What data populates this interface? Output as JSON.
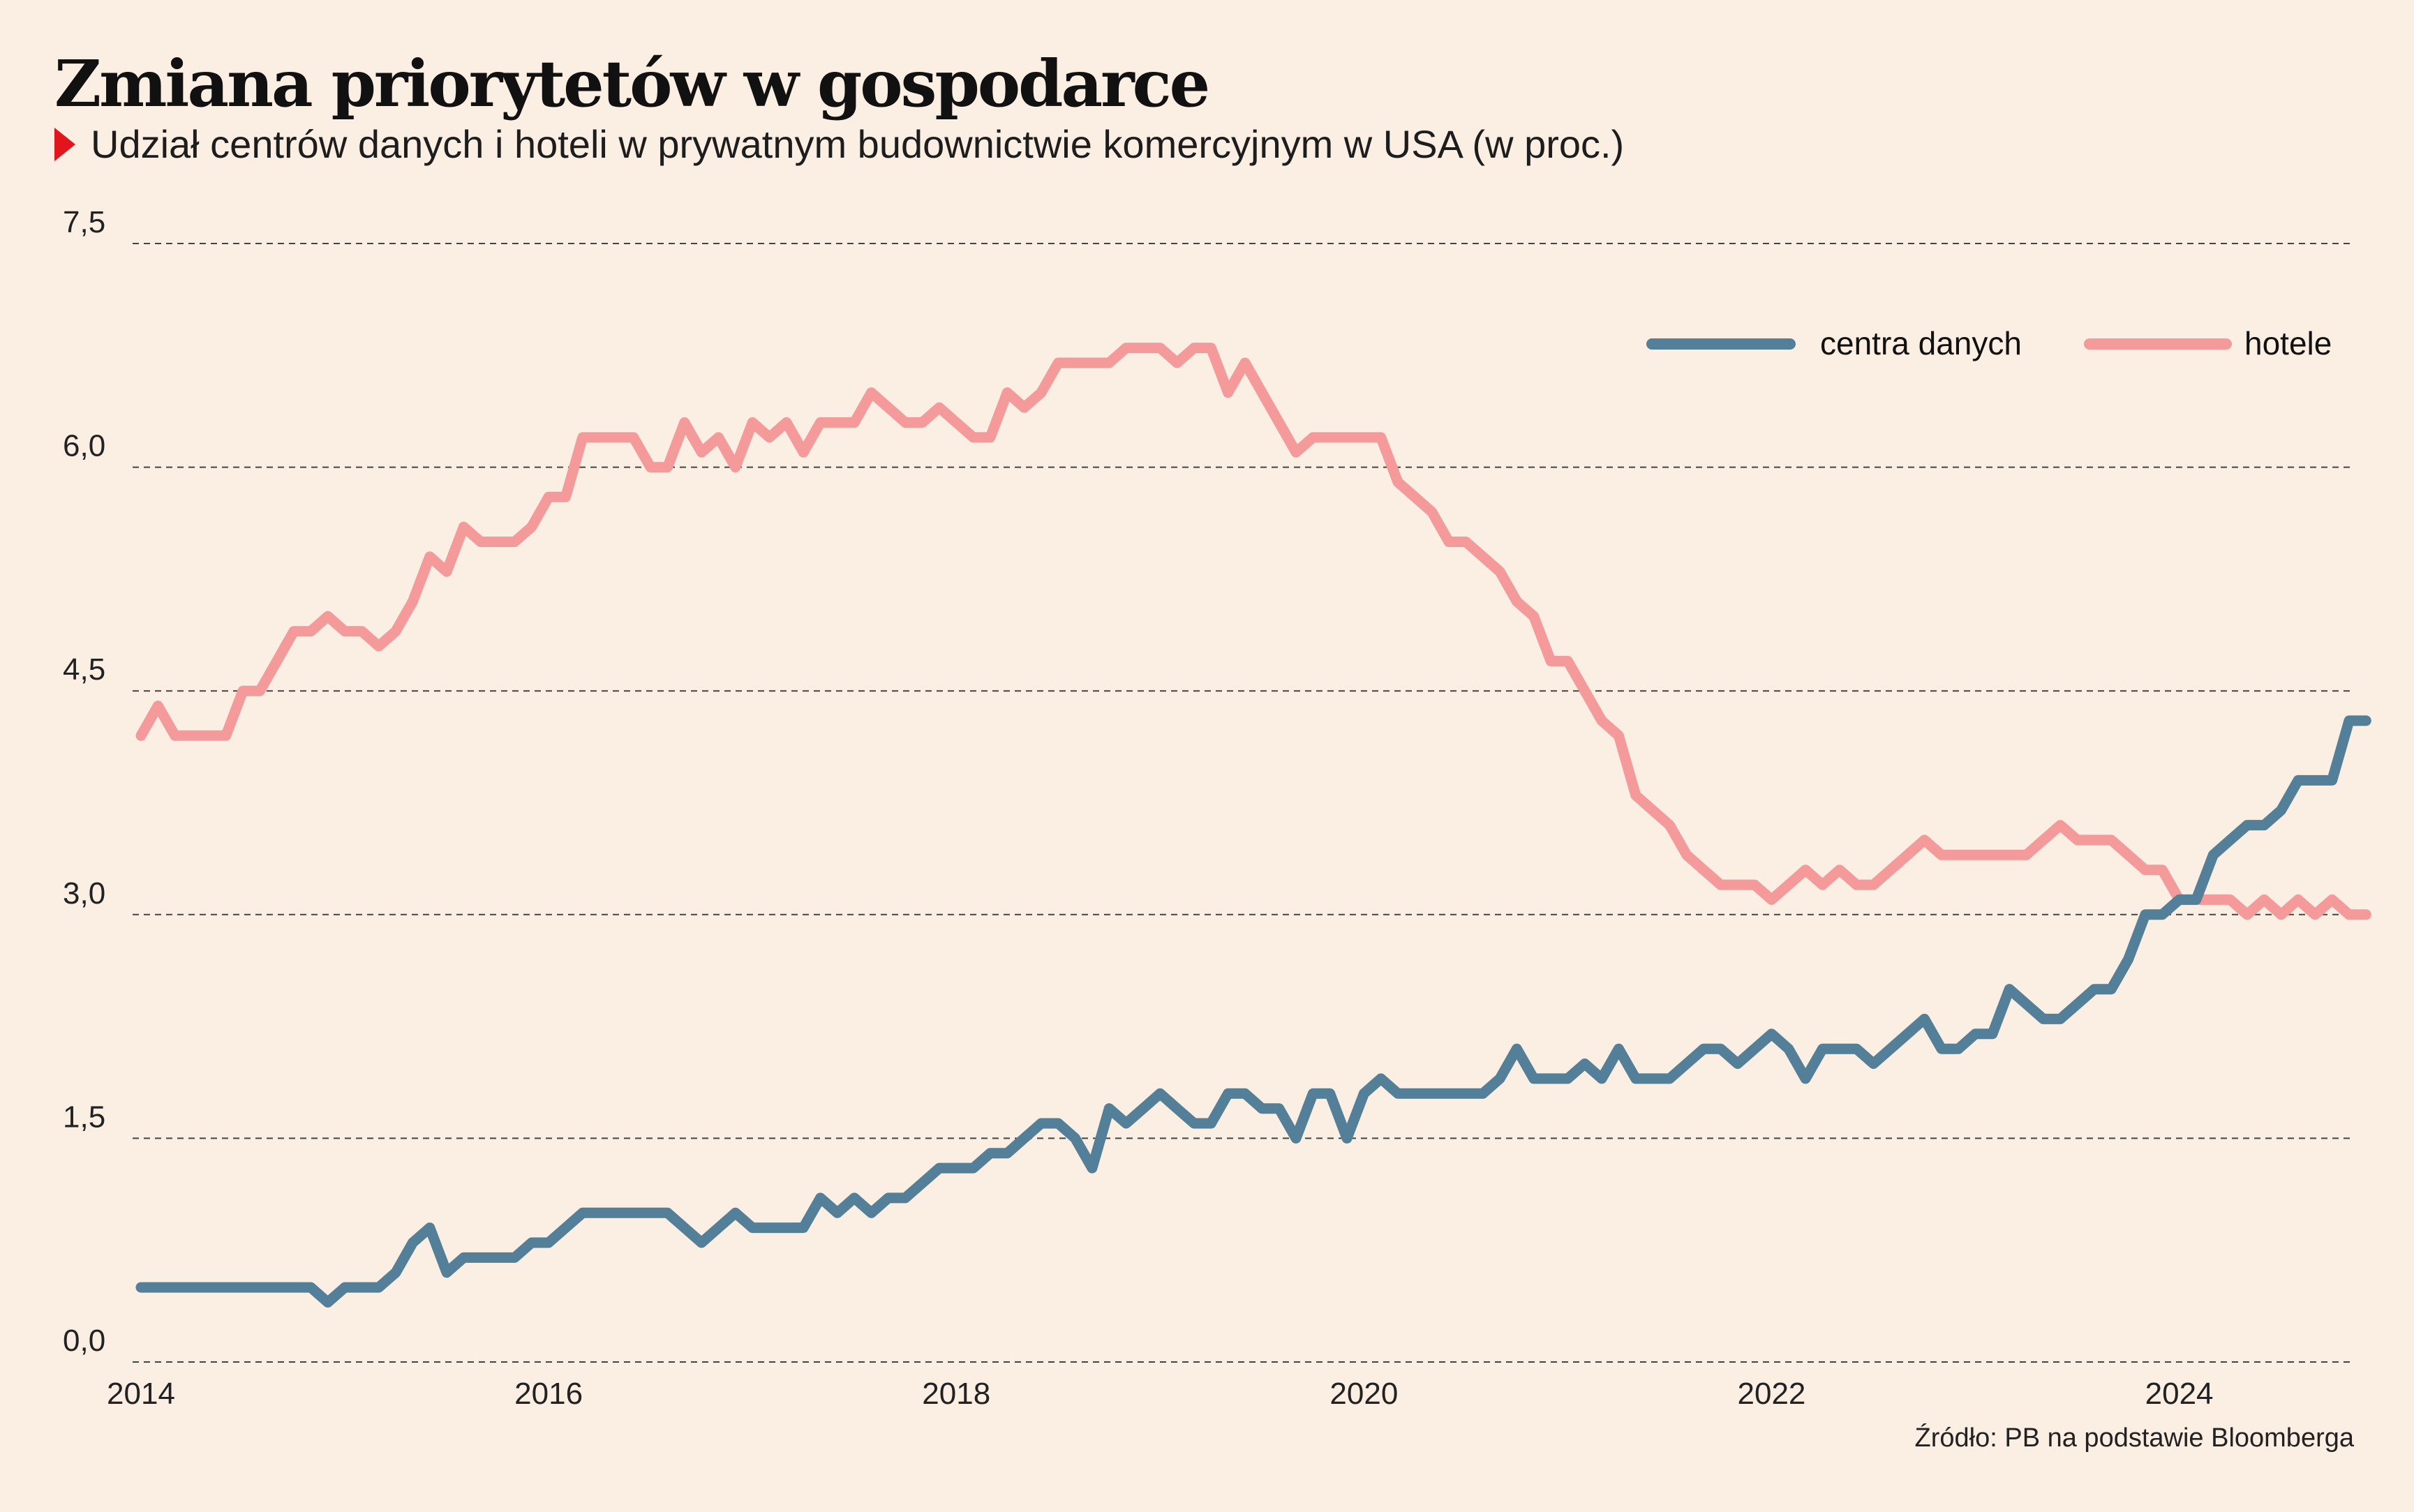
{
  "header": {
    "title": "Zmiana priorytetów w gospodarce",
    "subtitle": "Udział centrów danych i hoteli w prywatnym budownictwie komercyjnym w USA (w proc.)"
  },
  "footer": {
    "source": "Źródło: PB na podstawie Bloomberga"
  },
  "colors": {
    "centra": "#537f99",
    "hotele": "#f59a9a",
    "marker": "#e2141c",
    "background": "#fbeee2"
  },
  "chart_data": {
    "type": "line",
    "title": "Zmiana priorytetów w gospodarce",
    "subtitle": "Udział centrów danych i hoteli w prywatnym budownictwie komercyjnym w USA (w proc.)",
    "xlabel": "",
    "ylabel": "",
    "xlim": [
      2014,
      2024.83
    ],
    "ylim": [
      0,
      7.5
    ],
    "x_ticks": [
      "2014",
      "2016",
      "2018",
      "2020",
      "2022",
      "2024"
    ],
    "y_ticks": [
      "0,0",
      "1,5",
      "3,0",
      "4,5",
      "6,0",
      "7,5"
    ],
    "grid": "horizontal dashed",
    "legend_position": "top-right",
    "x_start": "2014-01",
    "x_end": "2024-10",
    "x_interval": "monthly",
    "series": [
      {
        "name": "centra danych",
        "values": [
          0.5,
          0.5,
          0.5,
          0.5,
          0.5,
          0.5,
          0.5,
          0.5,
          0.5,
          0.5,
          0.5,
          0.4,
          0.5,
          0.5,
          0.5,
          0.6,
          0.8,
          0.9,
          0.6,
          0.7,
          0.7,
          0.7,
          0.7,
          0.8,
          0.8,
          0.9,
          1.0,
          1.0,
          1.0,
          1.0,
          1.0,
          1.0,
          0.9,
          0.8,
          0.9,
          1.0,
          0.9,
          0.9,
          0.9,
          0.9,
          1.1,
          1.0,
          1.1,
          1.0,
          1.1,
          1.1,
          1.2,
          1.3,
          1.3,
          1.3,
          1.4,
          1.4,
          1.5,
          1.6,
          1.6,
          1.5,
          1.3,
          1.7,
          1.6,
          1.7,
          1.8,
          1.7,
          1.6,
          1.6,
          1.8,
          1.8,
          1.7,
          1.7,
          1.5,
          1.8,
          1.8,
          1.5,
          1.8,
          1.9,
          1.8,
          1.8,
          1.8,
          1.8,
          1.8,
          1.8,
          1.9,
          2.1,
          1.9,
          1.9,
          1.9,
          2.0,
          1.9,
          2.1,
          1.9,
          1.9,
          1.9,
          2.0,
          2.1,
          2.1,
          2.0,
          2.1,
          2.2,
          2.1,
          1.9,
          2.1,
          2.1,
          2.1,
          2.0,
          2.1,
          2.2,
          2.3,
          2.1,
          2.1,
          2.2,
          2.2,
          2.5,
          2.4,
          2.3,
          2.3,
          2.4,
          2.5,
          2.5,
          2.7,
          3.0,
          3.0,
          3.1,
          3.1,
          3.4,
          3.5,
          3.6,
          3.6,
          3.7,
          3.9,
          3.9,
          3.9,
          4.3,
          4.3
        ]
      },
      {
        "name": "hotele",
        "values": [
          4.2,
          4.4,
          4.2,
          4.2,
          4.2,
          4.2,
          4.5,
          4.5,
          4.7,
          4.9,
          4.9,
          5.0,
          4.9,
          4.9,
          4.8,
          4.9,
          5.1,
          5.4,
          5.3,
          5.6,
          5.5,
          5.5,
          5.5,
          5.6,
          5.8,
          5.8,
          6.2,
          6.2,
          6.2,
          6.2,
          6.0,
          6.0,
          6.3,
          6.1,
          6.2,
          6.0,
          6.3,
          6.2,
          6.3,
          6.1,
          6.3,
          6.3,
          6.3,
          6.5,
          6.4,
          6.3,
          6.3,
          6.4,
          6.3,
          6.2,
          6.2,
          6.5,
          6.4,
          6.5,
          6.7,
          6.7,
          6.7,
          6.7,
          6.8,
          6.8,
          6.8,
          6.7,
          6.8,
          6.8,
          6.5,
          6.7,
          6.5,
          6.3,
          6.1,
          6.2,
          6.2,
          6.2,
          6.2,
          6.2,
          5.9,
          5.8,
          5.7,
          5.5,
          5.5,
          5.4,
          5.3,
          5.1,
          5.0,
          4.7,
          4.7,
          4.5,
          4.3,
          4.2,
          3.8,
          3.7,
          3.6,
          3.4,
          3.3,
          3.2,
          3.2,
          3.2,
          3.1,
          3.2,
          3.3,
          3.2,
          3.3,
          3.2,
          3.2,
          3.3,
          3.4,
          3.5,
          3.4,
          3.4,
          3.4,
          3.4,
          3.4,
          3.4,
          3.5,
          3.6,
          3.5,
          3.5,
          3.5,
          3.4,
          3.3,
          3.3,
          3.1,
          3.1,
          3.1,
          3.1,
          3.0,
          3.1,
          3.0,
          3.1,
          3.0,
          3.1,
          3.0,
          3.0
        ]
      }
    ]
  }
}
